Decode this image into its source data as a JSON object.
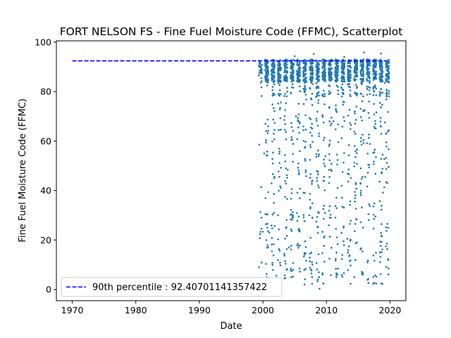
{
  "chart_data": {
    "type": "scatter",
    "title": "FORT NELSON FS - Fine Fuel Moisture Code (FFMC), Scatterplot",
    "xlabel": "Date",
    "ylabel": "Fine Fuel Moisture Code (FFMC)",
    "xlim": [
      1967.5,
      2022.5
    ],
    "ylim": [
      -4.5,
      100.5
    ],
    "xticks": [
      1970,
      1980,
      1990,
      2000,
      2010,
      2020
    ],
    "yticks": [
      0,
      20,
      40,
      60,
      80,
      100
    ],
    "grid": false,
    "legend_position": "lower-left",
    "series": [
      {
        "name": "",
        "kind": "points",
        "color": "#1f77b4",
        "season_years": [
          1999,
          2000,
          2001,
          2002,
          2003,
          2004,
          2005,
          2006,
          2007,
          2008,
          2009,
          2010,
          2011,
          2012,
          2013,
          2014,
          2015,
          2016,
          2017,
          2018,
          2019
        ],
        "value_range": [
          0,
          96
        ],
        "points": [
          [
            2008.9,
            0.3
          ],
          [
            2018.8,
            2.3
          ],
          [
            2000.6,
            5.0
          ],
          [
            2002.1,
            5.6
          ],
          [
            2003.4,
            4.5
          ],
          [
            2011.7,
            6.1
          ],
          [
            2012.4,
            5.9
          ],
          [
            2015.6,
            6.5
          ],
          [
            2001.0,
            23.0
          ],
          [
            1999.6,
            23.3
          ],
          [
            2000.0,
            23.4
          ],
          [
            2001.4,
            18.2
          ],
          [
            2004.1,
            17.0
          ],
          [
            2009.6,
            21.0
          ],
          [
            2013.3,
            20.5
          ],
          [
            2018.6,
            22.9
          ],
          [
            2018.8,
            16.2
          ],
          [
            2001.8,
            45.0
          ],
          [
            2003.9,
            48.4
          ],
          [
            2007.3,
            30.0
          ],
          [
            2012.5,
            33.5
          ],
          [
            2016.1,
            45.5
          ],
          [
            2019.1,
            41.3
          ],
          [
            2018.9,
            39.2
          ],
          [
            2000.2,
            55.0
          ],
          [
            2005.8,
            55.9
          ],
          [
            2010.4,
            58.0
          ],
          [
            2017.6,
            56.5
          ],
          [
            2019.1,
            52.7
          ],
          [
            2000.4,
            67.0
          ],
          [
            2005.2,
            70.0
          ],
          [
            2011.1,
            68.0
          ],
          [
            2016.0,
            72.5
          ],
          [
            2019.2,
            67.5
          ],
          [
            2019.2,
            83.5
          ],
          [
            2008.0,
            95.2
          ],
          [
            2015.9,
            95.8
          ],
          [
            2018.6,
            95.4
          ],
          [
            2005.0,
            94.3
          ],
          [
            2012.8,
            94.0
          ]
        ]
      },
      {
        "name": "90th percentile : 92.40701141357422",
        "kind": "dashed-line",
        "color": "#0000ff",
        "x": [
          1970.0,
          2019.5
        ],
        "y": [
          92.40701141357422,
          92.40701141357422
        ]
      }
    ]
  }
}
